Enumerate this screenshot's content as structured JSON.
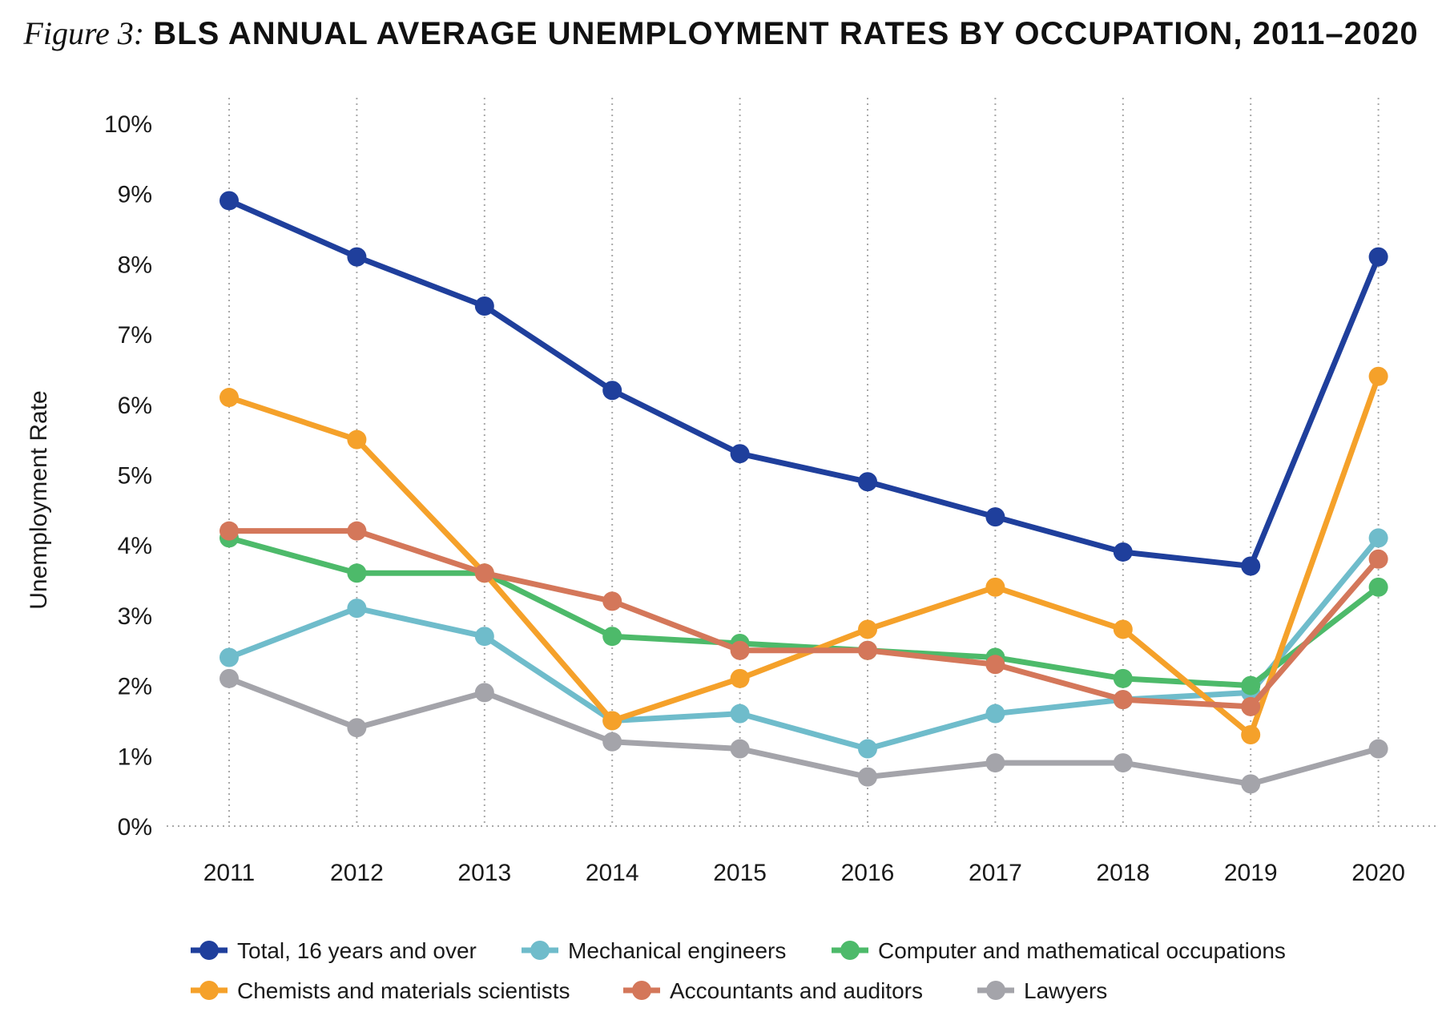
{
  "figure": {
    "prefix": "Figure 3:",
    "title": "BLS ANNUAL AVERAGE UNEMPLOYMENT RATES BY OCCUPATION, 2011–2020"
  },
  "chart_data": {
    "type": "line",
    "title": "BLS ANNUAL AVERAGE UNEMPLOYMENT RATES BY OCCUPATION, 2011–2020",
    "xlabel": "",
    "ylabel": "Unemployment Rate",
    "x": [
      "2011",
      "2012",
      "2013",
      "2014",
      "2015",
      "2016",
      "2017",
      "2018",
      "2019",
      "2020"
    ],
    "yticks": [
      "0%",
      "1%",
      "2%",
      "3%",
      "4%",
      "5%",
      "6%",
      "7%",
      "8%",
      "9%",
      "10%"
    ],
    "ylim": [
      0,
      10
    ],
    "grid": "vertical dotted",
    "legend_position": "bottom",
    "series": [
      {
        "name": "Total, 16 years and over",
        "color": "#1f3f9c",
        "values": [
          8.9,
          8.1,
          7.4,
          6.2,
          5.3,
          4.9,
          4.4,
          3.9,
          3.7,
          8.1
        ]
      },
      {
        "name": "Mechanical engineers",
        "color": "#6fbccb",
        "values": [
          2.4,
          3.1,
          2.7,
          1.5,
          1.6,
          1.1,
          1.6,
          1.8,
          1.9,
          4.1
        ]
      },
      {
        "name": "Computer and mathematical occupations",
        "color": "#4dba6a",
        "values": [
          4.1,
          3.6,
          3.6,
          2.7,
          2.6,
          2.5,
          2.4,
          2.1,
          2.0,
          3.4
        ]
      },
      {
        "name": "Chemists and materials scientists",
        "color": "#f5a12a",
        "values": [
          6.1,
          5.5,
          3.6,
          1.5,
          2.1,
          2.8,
          3.4,
          2.8,
          1.3,
          6.4
        ]
      },
      {
        "name": "Accountants and auditors",
        "color": "#d4775a",
        "values": [
          4.2,
          4.2,
          3.6,
          3.2,
          2.5,
          2.5,
          2.3,
          1.8,
          1.7,
          3.8
        ]
      },
      {
        "name": "Lawyers",
        "color": "#a4a4aa",
        "values": [
          2.1,
          1.4,
          1.9,
          1.2,
          1.1,
          0.7,
          0.9,
          0.9,
          0.6,
          1.1
        ]
      }
    ]
  }
}
